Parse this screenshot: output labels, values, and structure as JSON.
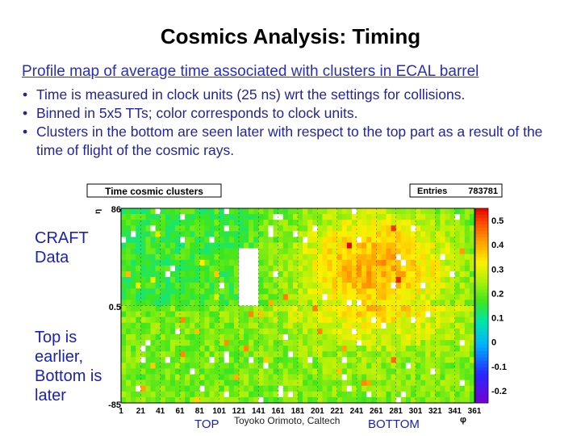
{
  "header": {
    "title": "Cosmics Analysis: Timing",
    "subtitle": "Profile map of average time associated with clusters in ECAL barrel",
    "bullets": [
      "Time is measured in clock units (25 ns) wrt the settings for collisions.",
      "Binned in 5x5 TTs; color corresponds to clock units.",
      "Clusters in the bottom are seen later with respect to the top part as a result of the time of flight of the cosmic rays."
    ]
  },
  "annotations": {
    "craft": [
      "CRAFT",
      "Data"
    ],
    "order": [
      "Top is",
      "earlier,",
      "Bottom is",
      "later"
    ],
    "top": "TOP",
    "bottom": "BOTTOM",
    "credit": "Toyoko Orimoto, Caltech"
  },
  "chart_data": {
    "type": "heatmap",
    "title": "Time cosmic clusters",
    "stats": {
      "label": "Entries",
      "value": "783781"
    },
    "ylabel": "η",
    "xlabel": "φ",
    "y_tick_labels": [
      "86",
      "0.5",
      "-85"
    ],
    "x_tick_labels": [
      "1",
      "21",
      "41",
      "61",
      "81",
      "101",
      "121",
      "141",
      "161",
      "181",
      "201",
      "221",
      "241",
      "261",
      "281",
      "301",
      "321",
      "341",
      "361"
    ],
    "x_range": [
      1,
      361
    ],
    "y_range": [
      -85,
      86
    ],
    "z_range": [
      -0.25,
      0.55
    ],
    "colorbar_ticks": [
      "0.5",
      "0.4",
      "0.3",
      "0.2",
      "0.1",
      "0",
      "-0.1",
      "-0.2"
    ],
    "colorbar_tick_values": [
      0.5,
      0.4,
      0.3,
      0.2,
      0.1,
      0,
      -0.1,
      -0.2
    ],
    "grid": true,
    "bins": {
      "nx": 72,
      "ny": 34
    },
    "description_of_pattern": "Top half near 0.1-0.2, bottom/right region near 0.3-0.45, sparse empty bins"
  },
  "colors": {
    "title_blue": "#2a2fb5",
    "body_blue": "#22249c"
  }
}
